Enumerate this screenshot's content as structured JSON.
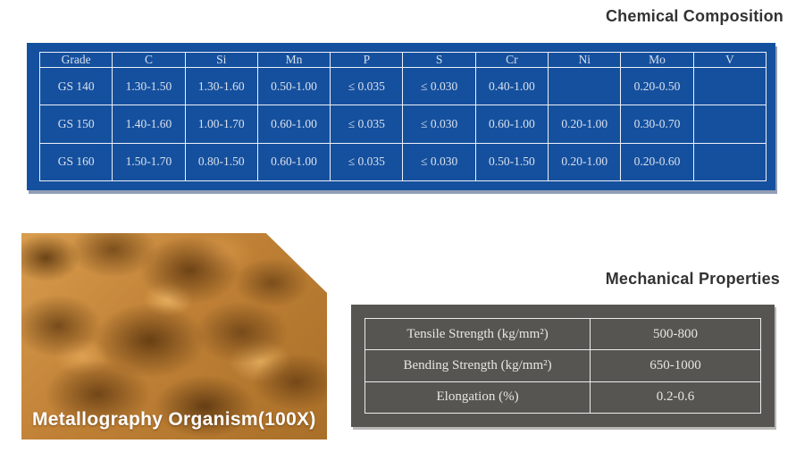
{
  "chemical": {
    "title": "Chemical Composition",
    "panel_color": "#15509e",
    "headers": [
      "Grade",
      "C",
      "Si",
      "Mn",
      "P",
      "S",
      "Cr",
      "Ni",
      "Mo",
      "V"
    ],
    "rows": [
      [
        "GS 140",
        "1.30-1.50",
        "1.30-1.60",
        "0.50-1.00",
        "≤ 0.035",
        "≤ 0.030",
        "0.40-1.00",
        "",
        "0.20-0.50",
        ""
      ],
      [
        "GS 150",
        "1.40-1.60",
        "1.00-1.70",
        "0.60-1.00",
        "≤ 0.035",
        "≤ 0.030",
        "0.60-1.00",
        "0.20-1.00",
        "0.30-0.70",
        ""
      ],
      [
        "GS 160",
        "1.50-1.70",
        "0.80-1.50",
        "0.60-1.00",
        "≤ 0.035",
        "≤ 0.030",
        "0.50-1.50",
        "0.20-1.00",
        "0.20-0.60",
        ""
      ]
    ]
  },
  "metallography": {
    "caption": "Metallography Organism(100X)"
  },
  "mechanical": {
    "title": "Mechanical Properties",
    "panel_color": "#575552",
    "rows": [
      {
        "label": "Tensile Strength (kg/mm²)",
        "value": "500-800"
      },
      {
        "label": "Bending Strength (kg/mm²)",
        "value": "650-1000"
      },
      {
        "label": "Elongation (%)",
        "value": "0.2-0.6"
      }
    ]
  }
}
